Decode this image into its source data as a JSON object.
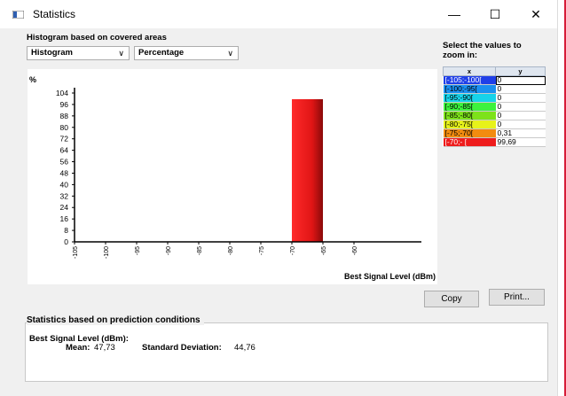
{
  "window": {
    "title": "Statistics",
    "minimize": "—",
    "maximize": "☐",
    "close": "✕"
  },
  "histogram": {
    "section_label": "Histogram based on covered areas",
    "mode_select": "Histogram",
    "scale_select": "Percentage"
  },
  "zoom": {
    "label_line1": "Select the values to",
    "label_line2": "zoom in:",
    "col_x": "x",
    "col_y": "y"
  },
  "legend_rows": [
    {
      "x": "[-105;-100[",
      "y": "0",
      "color": "#1f3fe8"
    },
    {
      "x": "[-100;-95[",
      "y": "0",
      "color": "#1a8ff0"
    },
    {
      "x": "[-95;-90[",
      "y": "0",
      "color": "#16d3ea"
    },
    {
      "x": "[-90;-85[",
      "y": "0",
      "color": "#3df23d"
    },
    {
      "x": "[-85;-80[",
      "y": "0",
      "color": "#7de21a"
    },
    {
      "x": "[-80;-75[",
      "y": "0",
      "color": "#e7f21a"
    },
    {
      "x": "[-75;-70[",
      "y": "0,31",
      "color": "#f28c10"
    },
    {
      "x": "[-70;- [",
      "y": "99,69",
      "color": "#ee1c1c"
    }
  ],
  "chart_data": {
    "type": "bar",
    "title": "",
    "ylabel": "%",
    "xlabel": "Best Signal Level (dBm)",
    "ylim": [
      0,
      104
    ],
    "xlim": [
      -105,
      -50
    ],
    "yticks": [
      "104",
      "96",
      "88",
      "80",
      "72",
      "64",
      "56",
      "48",
      "40",
      "32",
      "24",
      "16",
      "8",
      "0"
    ],
    "xticks": [
      "-105",
      "-100",
      "-95",
      "-90",
      "-85",
      "-80",
      "-75",
      "-70",
      "-65",
      "-60"
    ],
    "bars": [
      {
        "x0": -75,
        "x1": -70,
        "value": 0.31,
        "color": "#f28c10"
      },
      {
        "x0": -70,
        "x1": -65,
        "value": 99.69,
        "color": "#ee1c1c"
      }
    ]
  },
  "buttons": {
    "copy": "Copy",
    "print": "Print..."
  },
  "stats": {
    "section_label": "Statistics based on prediction conditions",
    "metric_label": "Best Signal Level (dBm):",
    "mean_label": "Mean:",
    "mean_value": "47,73",
    "std_label": "Standard Deviation:",
    "std_value": "44,76"
  }
}
